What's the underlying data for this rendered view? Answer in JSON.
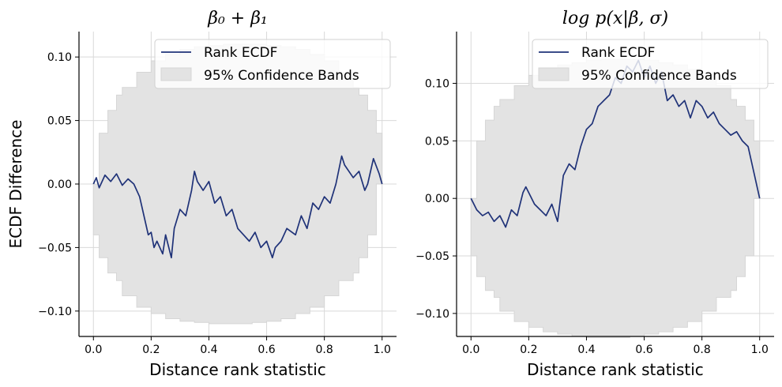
{
  "figure": {
    "ylabel": "ECDF Difference"
  },
  "colors": {
    "line": "#1f3278",
    "band_fill": "#e3e3e3",
    "band_edge": "#d6d6d6",
    "grid": "#d9d9d9"
  },
  "chart_data": [
    {
      "type": "line",
      "title": "β₀ + β₁",
      "xlabel": "Distance rank statistic",
      "ylabel": "ECDF Difference",
      "xlim": [
        -0.05,
        1.05
      ],
      "ylim": [
        -0.12,
        0.12
      ],
      "xticks": [
        0.0,
        0.2,
        0.4,
        0.6,
        0.8,
        1.0
      ],
      "xtick_labels": [
        "0.0",
        "0.2",
        "0.4",
        "0.6",
        "0.8",
        "1.0"
      ],
      "yticks": [
        -0.1,
        -0.05,
        0.0,
        0.05,
        0.1
      ],
      "ytick_labels": [
        "−0.10",
        "−0.05",
        "0.00",
        "0.05",
        "0.10"
      ],
      "legend": {
        "placement": "top-right",
        "line_label": "Rank ECDF",
        "band_label": "95% Confidence Bands"
      },
      "band": {
        "x": [
          0.0,
          0.02,
          0.05,
          0.08,
          0.1,
          0.15,
          0.2,
          0.25,
          0.3,
          0.35,
          0.4,
          0.45,
          0.5,
          0.55,
          0.6,
          0.65,
          0.7,
          0.75,
          0.8,
          0.85,
          0.9,
          0.92,
          0.95,
          0.98,
          1.0
        ],
        "upper": [
          0.0,
          0.04,
          0.058,
          0.07,
          0.076,
          0.088,
          0.097,
          0.102,
          0.106,
          0.108,
          0.109,
          0.11,
          0.11,
          0.11,
          0.109,
          0.108,
          0.106,
          0.102,
          0.097,
          0.088,
          0.076,
          0.07,
          0.058,
          0.04,
          0.0
        ],
        "lower": [
          0.0,
          -0.04,
          -0.058,
          -0.07,
          -0.076,
          -0.088,
          -0.097,
          -0.102,
          -0.106,
          -0.108,
          -0.109,
          -0.11,
          -0.11,
          -0.11,
          -0.109,
          -0.108,
          -0.106,
          -0.102,
          -0.097,
          -0.088,
          -0.076,
          -0.07,
          -0.058,
          -0.04,
          0.0
        ]
      },
      "series": [
        {
          "name": "Rank ECDF",
          "x": [
            0.0,
            0.01,
            0.02,
            0.04,
            0.06,
            0.08,
            0.1,
            0.12,
            0.14,
            0.16,
            0.18,
            0.19,
            0.2,
            0.21,
            0.22,
            0.24,
            0.25,
            0.27,
            0.28,
            0.3,
            0.32,
            0.34,
            0.35,
            0.36,
            0.38,
            0.4,
            0.42,
            0.44,
            0.46,
            0.48,
            0.5,
            0.52,
            0.54,
            0.56,
            0.58,
            0.6,
            0.62,
            0.63,
            0.65,
            0.67,
            0.7,
            0.72,
            0.74,
            0.76,
            0.78,
            0.8,
            0.82,
            0.84,
            0.86,
            0.87,
            0.9,
            0.92,
            0.94,
            0.95,
            0.97,
            0.99,
            1.0
          ],
          "y": [
            0.0,
            0.005,
            -0.003,
            0.007,
            0.002,
            0.008,
            -0.001,
            0.004,
            0.0,
            -0.01,
            -0.03,
            -0.04,
            -0.038,
            -0.05,
            -0.045,
            -0.055,
            -0.04,
            -0.058,
            -0.035,
            -0.02,
            -0.025,
            -0.005,
            0.01,
            0.002,
            -0.005,
            0.002,
            -0.015,
            -0.01,
            -0.025,
            -0.02,
            -0.035,
            -0.04,
            -0.045,
            -0.038,
            -0.05,
            -0.045,
            -0.058,
            -0.05,
            -0.045,
            -0.035,
            -0.04,
            -0.025,
            -0.035,
            -0.015,
            -0.02,
            -0.01,
            -0.015,
            0.0,
            0.022,
            0.015,
            0.005,
            0.01,
            -0.005,
            0.0,
            0.02,
            0.008,
            0.0
          ]
        }
      ]
    },
    {
      "type": "line",
      "title": "log p(x|β, σ)",
      "xlabel": "Distance rank statistic",
      "ylabel": "",
      "xlim": [
        -0.05,
        1.05
      ],
      "ylim": [
        -0.12,
        0.145
      ],
      "xticks": [
        0.0,
        0.2,
        0.4,
        0.6,
        0.8,
        1.0
      ],
      "xtick_labels": [
        "0.0",
        "0.2",
        "0.4",
        "0.6",
        "0.8",
        "1.0"
      ],
      "yticks": [
        -0.1,
        -0.05,
        0.0,
        0.05,
        0.1
      ],
      "ytick_labels": [
        "−0.10",
        "−0.05",
        "0.00",
        "0.05",
        "0.10"
      ],
      "legend": {
        "placement": "top-right",
        "line_label": "Rank ECDF",
        "band_label": "95% Confidence Bands"
      },
      "band": {
        "x": [
          0.0,
          0.02,
          0.05,
          0.08,
          0.1,
          0.15,
          0.2,
          0.25,
          0.3,
          0.35,
          0.4,
          0.45,
          0.5,
          0.55,
          0.6,
          0.65,
          0.7,
          0.75,
          0.8,
          0.85,
          0.9,
          0.92,
          0.95,
          0.98,
          1.0
        ],
        "upper": [
          0.0,
          0.05,
          0.068,
          0.08,
          0.086,
          0.098,
          0.107,
          0.112,
          0.116,
          0.118,
          0.12,
          0.121,
          0.121,
          0.121,
          0.12,
          0.118,
          0.116,
          0.112,
          0.107,
          0.098,
          0.086,
          0.08,
          0.068,
          0.05,
          0.0
        ],
        "lower": [
          0.0,
          -0.05,
          -0.068,
          -0.08,
          -0.086,
          -0.098,
          -0.107,
          -0.112,
          -0.116,
          -0.118,
          -0.12,
          -0.121,
          -0.121,
          -0.121,
          -0.12,
          -0.118,
          -0.116,
          -0.112,
          -0.107,
          -0.098,
          -0.086,
          -0.08,
          -0.068,
          -0.05,
          0.0
        ]
      },
      "series": [
        {
          "name": "Rank ECDF",
          "x": [
            0.0,
            0.02,
            0.04,
            0.06,
            0.08,
            0.1,
            0.12,
            0.14,
            0.16,
            0.18,
            0.19,
            0.2,
            0.22,
            0.24,
            0.26,
            0.28,
            0.3,
            0.31,
            0.32,
            0.34,
            0.36,
            0.38,
            0.4,
            0.42,
            0.44,
            0.46,
            0.48,
            0.5,
            0.52,
            0.54,
            0.56,
            0.58,
            0.6,
            0.62,
            0.64,
            0.66,
            0.68,
            0.7,
            0.72,
            0.74,
            0.76,
            0.78,
            0.8,
            0.82,
            0.84,
            0.86,
            0.88,
            0.9,
            0.92,
            0.94,
            0.96,
            1.0
          ],
          "y": [
            0.0,
            -0.01,
            -0.015,
            -0.012,
            -0.02,
            -0.015,
            -0.025,
            -0.01,
            -0.015,
            0.005,
            0.01,
            0.005,
            -0.005,
            -0.01,
            -0.015,
            -0.005,
            -0.02,
            0.0,
            0.02,
            0.03,
            0.025,
            0.045,
            0.06,
            0.065,
            0.08,
            0.085,
            0.09,
            0.105,
            0.1,
            0.115,
            0.11,
            0.12,
            0.105,
            0.115,
            0.1,
            0.11,
            0.085,
            0.09,
            0.08,
            0.085,
            0.07,
            0.085,
            0.08,
            0.07,
            0.075,
            0.065,
            0.06,
            0.055,
            0.058,
            0.05,
            0.045,
            0.0
          ]
        }
      ]
    }
  ]
}
